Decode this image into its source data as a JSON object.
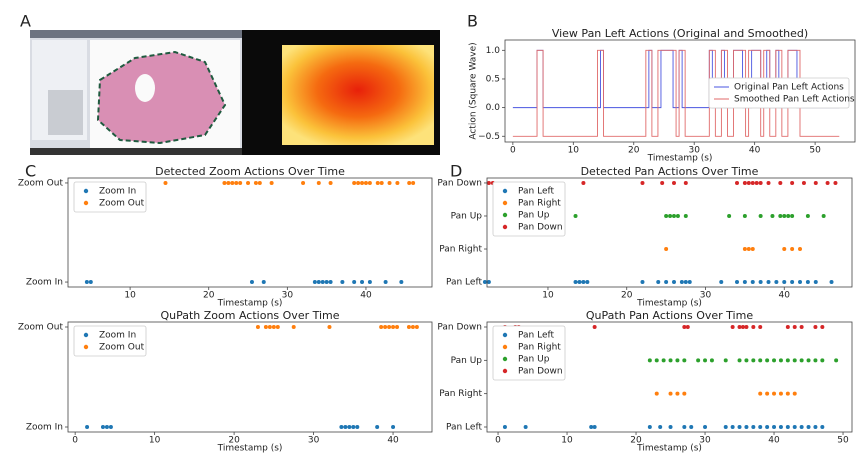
{
  "panel_labels": [
    "A",
    "B",
    "C",
    "D"
  ],
  "chart_data": [
    {
      "type": "line",
      "title": "View Pan Left Actions (Original and Smoothed)",
      "x_label": "Timestamp (s)",
      "y_label": "Action (Square Wave)",
      "xlim": [
        -1.3,
        56.6
      ],
      "xticks": [
        0,
        10,
        20,
        30,
        40,
        50
      ],
      "ylim": [
        -0.6,
        1.18
      ],
      "yticks": [
        {
          "value": -0.5,
          "label": "−0.5"
        },
        {
          "value": 0,
          "label": "0.0"
        },
        {
          "value": 0.5,
          "label": "0.5"
        },
        {
          "value": 1,
          "label": "1.0"
        }
      ],
      "legend": "upper right",
      "series": [
        {
          "name": "Original Pan Left Actions",
          "color": "#4a55e0",
          "x": [
            0,
            4,
            4,
            5,
            5,
            14.5,
            14.5,
            15,
            15,
            22.5,
            22.5,
            23,
            23,
            24.5,
            24.5,
            26.5,
            26.5,
            27.5,
            27.5,
            28,
            28,
            32.5,
            32.5,
            33,
            33,
            34.5,
            34.5,
            35,
            35,
            36.5,
            36.5,
            38,
            38,
            39.5,
            39.5,
            41,
            41,
            42,
            42,
            42.5,
            42.5,
            43.5,
            43.5,
            44,
            44,
            45.5,
            45.5,
            47,
            47,
            54
          ],
          "values": [
            0,
            0,
            1,
            1,
            0,
            0,
            1,
            1,
            0,
            0,
            1,
            1,
            0,
            0,
            1,
            1,
            0,
            0,
            1,
            1,
            0,
            0,
            1,
            1,
            0,
            0,
            1,
            1,
            0,
            0,
            1,
            1,
            0,
            0,
            1,
            1,
            0,
            0,
            1,
            1,
            0,
            0,
            1,
            1,
            0,
            0,
            1,
            1,
            0,
            0
          ]
        },
        {
          "name": "Smoothed Pan Left Actions",
          "color": "#e06a6a",
          "x": [
            0,
            4,
            4,
            5,
            5,
            14,
            14,
            15,
            15,
            22,
            22,
            23,
            23,
            24,
            24,
            27,
            27,
            27.5,
            27.5,
            28.5,
            28.5,
            32.5,
            32.5,
            33.5,
            33.5,
            34.5,
            34.5,
            35.5,
            35.5,
            36.5,
            36.5,
            38.5,
            38.5,
            39,
            39,
            41,
            41,
            41.5,
            41.5,
            42.5,
            42.5,
            43.5,
            43.5,
            44.5,
            44.5,
            45.5,
            45.5,
            47.5,
            47.5,
            54
          ],
          "values": [
            -0.5,
            -0.5,
            1,
            1,
            -0.5,
            -0.5,
            1,
            1,
            -0.5,
            -0.5,
            1,
            1,
            -0.5,
            -0.5,
            1,
            1,
            -0.5,
            -0.5,
            1,
            1,
            -0.5,
            -0.5,
            1,
            1,
            -0.5,
            -0.5,
            1,
            1,
            -0.5,
            -0.5,
            1,
            1,
            -0.5,
            -0.5,
            1,
            1,
            -0.5,
            -0.5,
            1,
            1,
            -0.5,
            -0.5,
            1,
            1,
            -0.5,
            -0.5,
            1,
            1,
            -0.5,
            -0.5
          ]
        }
      ]
    },
    {
      "type": "scatter",
      "title": "Detected Zoom Actions Over Time",
      "x_label": "Timestamp (s)",
      "categories": [
        "Zoom In",
        "Zoom Out"
      ],
      "xlim": [
        2.1,
        48.4
      ],
      "xticks": [
        10,
        20,
        30,
        40
      ],
      "legend": "upper left",
      "series": [
        {
          "name": "Zoom In",
          "color": "#1f77b4",
          "x": [
            4.5,
            5,
            25.5,
            27,
            33.5,
            34,
            34.5,
            35,
            35.5,
            37,
            38.5,
            39.5,
            40.5,
            42.5,
            44.5
          ]
        },
        {
          "name": "Zoom Out",
          "color": "#ff7f0e",
          "x": [
            14.5,
            22,
            22.5,
            23,
            23.5,
            24,
            25,
            26,
            26.5,
            28,
            32,
            34,
            35.5,
            38.5,
            39,
            39.5,
            40,
            40.5,
            41.5,
            42,
            43,
            44,
            45.5,
            46
          ]
        }
      ]
    },
    {
      "type": "scatter",
      "title": "Detected Pan Actions Over Time",
      "x_label": "Timestamp (s)",
      "categories": [
        "Pan Left",
        "Pan Right",
        "Pan Up",
        "Pan Down"
      ],
      "xlim": [
        2.26,
        48.6
      ],
      "xticks": [
        10,
        20,
        30,
        40
      ],
      "legend": "upper left",
      "series": [
        {
          "name": "Pan Left",
          "color": "#1f77b4",
          "x": [
            2,
            2.5,
            13.5,
            14,
            14.5,
            15,
            22,
            24,
            25,
            26,
            27,
            27.5,
            28,
            32,
            34,
            35,
            36,
            37,
            38,
            39,
            40,
            41,
            42,
            43,
            44,
            46
          ]
        },
        {
          "name": "Pan Right",
          "color": "#ff7f0e",
          "x": [
            25,
            35,
            35.5,
            36,
            40,
            41,
            42
          ]
        },
        {
          "name": "Pan Up",
          "color": "#2ca02c",
          "x": [
            13.5,
            25,
            25.5,
            26,
            26.5,
            27.5,
            33,
            35,
            37,
            38.5,
            39.5,
            40,
            40.5,
            41,
            43,
            45
          ]
        },
        {
          "name": "Pan Down",
          "color": "#d62728",
          "x": [
            2.5,
            3,
            14.5,
            22,
            24.5,
            26,
            27.5,
            34,
            35,
            35.5,
            36,
            36.5,
            37,
            38,
            39.5,
            41,
            42.5,
            44,
            45.5,
            46.5
          ]
        }
      ]
    },
    {
      "type": "scatter",
      "title": "QuPath Zoom Actions Over Time",
      "x_label": "Timestamp (s)",
      "categories": [
        "Zoom In",
        "Zoom Out"
      ],
      "xlim": [
        -0.9,
        44.9
      ],
      "xticks": [
        0,
        10,
        20,
        30,
        40
      ],
      "legend": "upper left",
      "series": [
        {
          "name": "Zoom In",
          "color": "#1f77b4",
          "x": [
            1.5,
            3.5,
            4,
            4.5,
            33.5,
            34,
            34.5,
            35,
            35.5,
            38,
            40
          ]
        },
        {
          "name": "Zoom Out",
          "color": "#ff7f0e",
          "x": [
            23,
            24,
            24.5,
            25,
            25.5,
            27.5,
            32,
            38.5,
            39,
            39.5,
            40,
            40.5,
            42,
            42.5,
            43
          ]
        }
      ]
    },
    {
      "type": "scatter",
      "title": "QuPath Pan Actions Over Time",
      "x_label": "Timestamp (s)",
      "categories": [
        "Pan Left",
        "Pan Right",
        "Pan Up",
        "Pan Down"
      ],
      "xlim": [
        -1.6,
        51.3
      ],
      "xticks": [
        0,
        10,
        20,
        30,
        40,
        50
      ],
      "legend": "upper left",
      "series": [
        {
          "name": "Pan Left",
          "color": "#1f77b4",
          "x": [
            1,
            4,
            13.5,
            14,
            22,
            23.5,
            25,
            27,
            28,
            30,
            33,
            34,
            35,
            36,
            37,
            38,
            39,
            40,
            41,
            42,
            43,
            44,
            45,
            46,
            47
          ]
        },
        {
          "name": "Pan Right",
          "color": "#ff7f0e",
          "x": [
            23,
            25,
            26,
            27,
            38,
            39,
            40,
            41,
            42,
            43
          ]
        },
        {
          "name": "Pan Up",
          "color": "#2ca02c",
          "x": [
            3,
            3.5,
            22,
            23,
            24,
            25,
            26,
            27,
            29,
            30,
            31,
            33,
            35,
            36,
            37,
            38,
            39,
            40,
            41,
            42,
            43,
            44,
            45,
            46,
            47,
            49
          ]
        },
        {
          "name": "Pan Down",
          "color": "#d62728",
          "x": [
            1,
            2.5,
            3,
            14,
            27,
            27.5,
            34,
            35,
            35.5,
            36,
            37,
            38,
            42,
            43,
            44,
            46,
            47
          ]
        }
      ]
    }
  ]
}
